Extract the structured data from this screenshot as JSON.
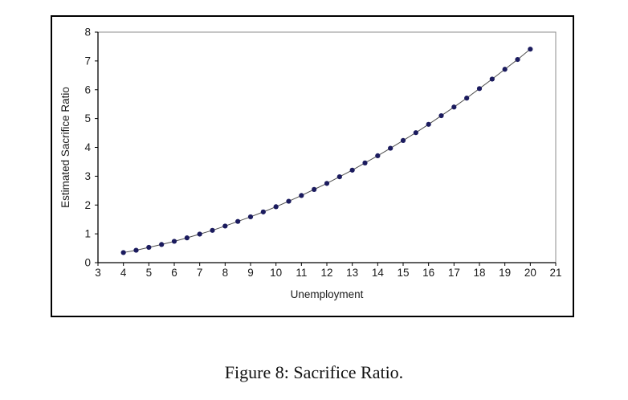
{
  "figure": {
    "caption": "Figure 8: Sacrifice Ratio."
  },
  "chart_data": {
    "type": "line",
    "title": "",
    "xlabel": "Unemployment",
    "ylabel": "Estimated Sacrifice Ratio",
    "xlim": [
      3,
      21
    ],
    "ylim": [
      0,
      8
    ],
    "xticks": [
      3,
      4,
      5,
      6,
      7,
      8,
      9,
      10,
      11,
      12,
      13,
      14,
      15,
      16,
      17,
      18,
      19,
      20,
      21
    ],
    "yticks": [
      0,
      1,
      2,
      3,
      4,
      5,
      6,
      7,
      8
    ],
    "grid": false,
    "legend_position": "none",
    "marker": "circle",
    "series": [
      {
        "name": "Estimated Sacrifice Ratio",
        "x": [
          4,
          4.5,
          5,
          5.5,
          6,
          6.5,
          7,
          7.5,
          8,
          8.5,
          9,
          9.5,
          10,
          10.5,
          11,
          11.5,
          12,
          12.5,
          13,
          13.5,
          14,
          14.5,
          15,
          15.5,
          16,
          16.5,
          17,
          17.5,
          18,
          18.5,
          19,
          19.5,
          20
        ],
        "y": [
          0.35,
          0.43,
          0.53,
          0.63,
          0.74,
          0.86,
          0.99,
          1.12,
          1.27,
          1.43,
          1.59,
          1.76,
          1.94,
          2.13,
          2.33,
          2.54,
          2.75,
          2.98,
          3.21,
          3.46,
          3.71,
          3.97,
          4.24,
          4.51,
          4.8,
          5.1,
          5.4,
          5.71,
          6.04,
          6.37,
          6.71,
          7.05,
          7.41
        ]
      }
    ],
    "colors": {
      "marker": "#1b1b5e",
      "line": "#4d4d4d",
      "plot_border": "#8c8c8c",
      "frame_border": "#000000",
      "axis": "#000000",
      "text": "#1a1a1a"
    }
  }
}
